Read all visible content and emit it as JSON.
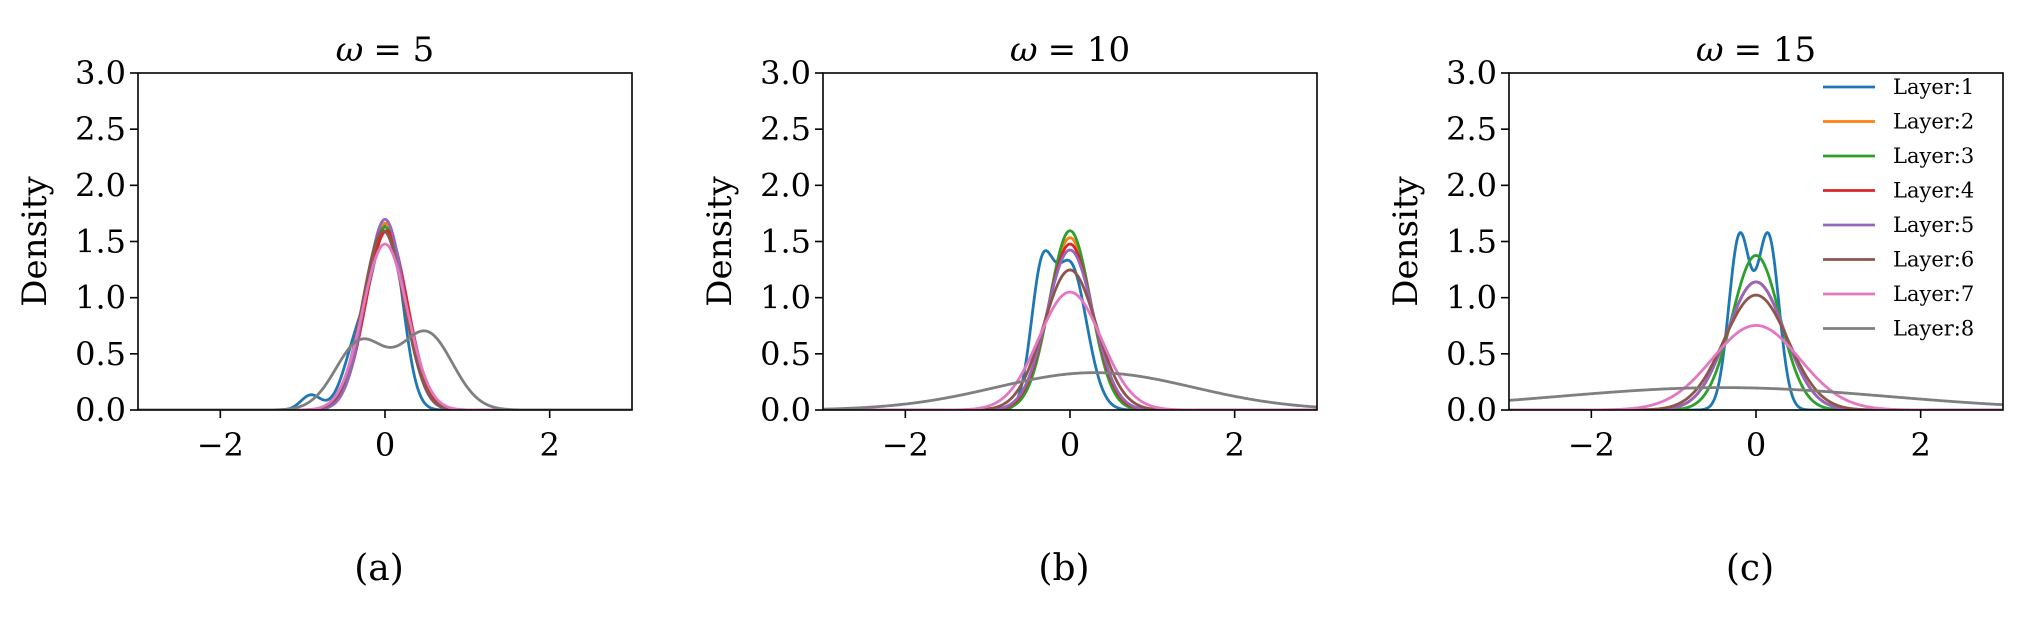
{
  "chart_data": [
    {
      "type": "line",
      "panel_caption": "(a)",
      "title_symbol": "ω",
      "title_value": "= 5",
      "xlabel": "",
      "ylabel": "Density",
      "xlim": [
        -3,
        3
      ],
      "ylim": [
        0,
        3
      ],
      "xticks": [
        -2,
        0,
        2
      ],
      "xtick_labels": [
        "−2",
        "0",
        "2"
      ],
      "yticks": [
        0,
        0.5,
        1,
        1.5,
        2,
        2.5,
        3
      ],
      "ytick_labels": [
        "0.0",
        "0.5",
        "1.0",
        "1.5",
        "2.0",
        "2.5",
        "3.0"
      ],
      "grid": false,
      "legend": false,
      "series": [
        {
          "name": "Layer:1",
          "color": "#1f77b4",
          "components": [
            [
              0.04,
              -0.9,
              0.12
            ],
            [
              0.3,
              -0.3,
              0.18
            ],
            [
              0.66,
              0.05,
              0.17
            ]
          ]
        },
        {
          "name": "Layer:2",
          "color": "#ff7f0e",
          "components": [
            [
              1.0,
              0.0,
              0.24
            ]
          ]
        },
        {
          "name": "Layer:3",
          "color": "#2ca02c",
          "components": [
            [
              1.0,
              0.0,
              0.245
            ]
          ]
        },
        {
          "name": "Layer:4",
          "color": "#d62728",
          "components": [
            [
              1.0,
              0.02,
              0.25
            ]
          ]
        },
        {
          "name": "Layer:5",
          "color": "#9467bd",
          "components": [
            [
              1.0,
              0.0,
              0.235
            ]
          ]
        },
        {
          "name": "Layer:6",
          "color": "#8c564b",
          "components": [
            [
              1.0,
              -0.02,
              0.25
            ]
          ]
        },
        {
          "name": "Layer:7",
          "color": "#e377c2",
          "components": [
            [
              1.0,
              0.0,
              0.27
            ]
          ]
        },
        {
          "name": "Layer:8",
          "color": "#7f7f7f",
          "components": [
            [
              0.45,
              -0.3,
              0.3
            ],
            [
              0.55,
              0.5,
              0.32
            ]
          ]
        }
      ]
    },
    {
      "type": "line",
      "panel_caption": "(b)",
      "title_symbol": "ω",
      "title_value": "= 10",
      "xlabel": "",
      "ylabel": "Density",
      "xlim": [
        -3,
        3
      ],
      "ylim": [
        0,
        3
      ],
      "xticks": [
        -2,
        0,
        2
      ],
      "xtick_labels": [
        "−2",
        "0",
        "2"
      ],
      "yticks": [
        0,
        0.5,
        1,
        1.5,
        2,
        2.5,
        3
      ],
      "ytick_labels": [
        "0.0",
        "0.5",
        "1.0",
        "1.5",
        "2.0",
        "2.5",
        "3.0"
      ],
      "grid": false,
      "legend": false,
      "series": [
        {
          "name": "Layer:1",
          "color": "#1f77b4",
          "components": [
            [
              0.35,
              -0.35,
              0.13
            ],
            [
              0.65,
              0.0,
              0.2
            ]
          ]
        },
        {
          "name": "Layer:2",
          "color": "#ff7f0e",
          "components": [
            [
              1.0,
              0.0,
              0.26
            ]
          ]
        },
        {
          "name": "Layer:3",
          "color": "#2ca02c",
          "components": [
            [
              1.0,
              0.0,
              0.25
            ]
          ]
        },
        {
          "name": "Layer:4",
          "color": "#d62728",
          "components": [
            [
              1.0,
              0.0,
              0.27
            ]
          ]
        },
        {
          "name": "Layer:5",
          "color": "#9467bd",
          "components": [
            [
              1.0,
              0.0,
              0.28
            ]
          ]
        },
        {
          "name": "Layer:6",
          "color": "#8c564b",
          "components": [
            [
              1.0,
              0.0,
              0.32
            ]
          ]
        },
        {
          "name": "Layer:7",
          "color": "#e377c2",
          "components": [
            [
              1.0,
              0.0,
              0.38
            ]
          ]
        },
        {
          "name": "Layer:8",
          "color": "#7f7f7f",
          "components": [
            [
              1.0,
              0.3,
              1.2
            ]
          ]
        }
      ]
    },
    {
      "type": "line",
      "panel_caption": "(c)",
      "title_symbol": "ω",
      "title_value": "= 15",
      "xlabel": "",
      "ylabel": "Density",
      "xlim": [
        -3,
        3
      ],
      "ylim": [
        0,
        3
      ],
      "xticks": [
        -2,
        0,
        2
      ],
      "xtick_labels": [
        "−2",
        "0",
        "2"
      ],
      "yticks": [
        0,
        0.5,
        1,
        1.5,
        2,
        2.5,
        3
      ],
      "ytick_labels": [
        "0.0",
        "0.5",
        "1.0",
        "1.5",
        "2.0",
        "2.5",
        "3.0"
      ],
      "grid": false,
      "legend": true,
      "legend_position": "top-right",
      "series": [
        {
          "name": "Layer:1",
          "color": "#1f77b4",
          "components": [
            [
              0.5,
              -0.2,
              0.13
            ],
            [
              0.5,
              0.15,
              0.13
            ]
          ]
        },
        {
          "name": "Layer:2",
          "color": "#ff7f0e",
          "components": [
            [
              1.0,
              0.0,
              0.35
            ]
          ]
        },
        {
          "name": "Layer:3",
          "color": "#2ca02c",
          "components": [
            [
              1.0,
              0.0,
              0.29
            ]
          ]
        },
        {
          "name": "Layer:4",
          "color": "#d62728",
          "components": [
            [
              1.0,
              0.0,
              0.35
            ]
          ]
        },
        {
          "name": "Layer:5",
          "color": "#9467bd",
          "components": [
            [
              1.0,
              0.0,
              0.35
            ]
          ]
        },
        {
          "name": "Layer:6",
          "color": "#8c564b",
          "components": [
            [
              1.0,
              0.0,
              0.39
            ]
          ]
        },
        {
          "name": "Layer:7",
          "color": "#e377c2",
          "components": [
            [
              1.0,
              0.0,
              0.53
            ]
          ]
        },
        {
          "name": "Layer:8",
          "color": "#7f7f7f",
          "components": [
            [
              1.0,
              -0.4,
              2.0
            ]
          ]
        }
      ]
    }
  ]
}
